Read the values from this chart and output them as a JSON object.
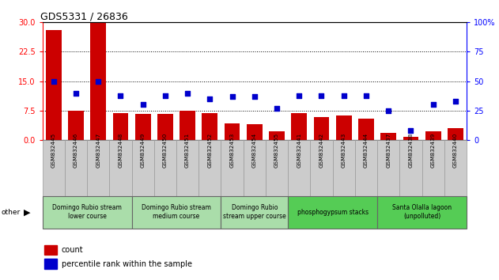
{
  "title": "GDS5331 / 26836",
  "samples": [
    "GSM832445",
    "GSM832446",
    "GSM832447",
    "GSM832448",
    "GSM832449",
    "GSM832450",
    "GSM832451",
    "GSM832452",
    "GSM832453",
    "GSM832454",
    "GSM832455",
    "GSM832441",
    "GSM832442",
    "GSM832443",
    "GSM832444",
    "GSM832437",
    "GSM832438",
    "GSM832439",
    "GSM832440"
  ],
  "counts": [
    28,
    7.5,
    30,
    6.8,
    6.6,
    6.6,
    7.5,
    6.8,
    4.2,
    4.0,
    2.2,
    6.8,
    5.8,
    6.2,
    5.5,
    1.8,
    0.8,
    2.2,
    3.0
  ],
  "percentiles": [
    50,
    40,
    50,
    38,
    30,
    38,
    40,
    35,
    37,
    37,
    27,
    38,
    38,
    38,
    38,
    25,
    8,
    30,
    33
  ],
  "groups": [
    {
      "label": "Domingo Rubio stream\nlower course",
      "start": 0,
      "end": 4,
      "color": "#aaddaa"
    },
    {
      "label": "Domingo Rubio stream\nmedium course",
      "start": 4,
      "end": 8,
      "color": "#aaddaa"
    },
    {
      "label": "Domingo Rubio\nstream upper course",
      "start": 8,
      "end": 11,
      "color": "#aaddaa"
    },
    {
      "label": "phosphogypsum stacks",
      "start": 11,
      "end": 15,
      "color": "#55cc55"
    },
    {
      "label": "Santa Olalla lagoon\n(unpolluted)",
      "start": 15,
      "end": 19,
      "color": "#55cc55"
    }
  ],
  "left_ylim": [
    0,
    30
  ],
  "right_ylim": [
    0,
    100
  ],
  "left_yticks": [
    0,
    7.5,
    15,
    22.5,
    30
  ],
  "right_yticks": [
    0,
    25,
    50,
    75,
    100
  ],
  "bar_color": "#cc0000",
  "dot_color": "#0000cc",
  "sample_box_color": "#cccccc",
  "group_border_color": "#666666",
  "grid_color": "#000000"
}
